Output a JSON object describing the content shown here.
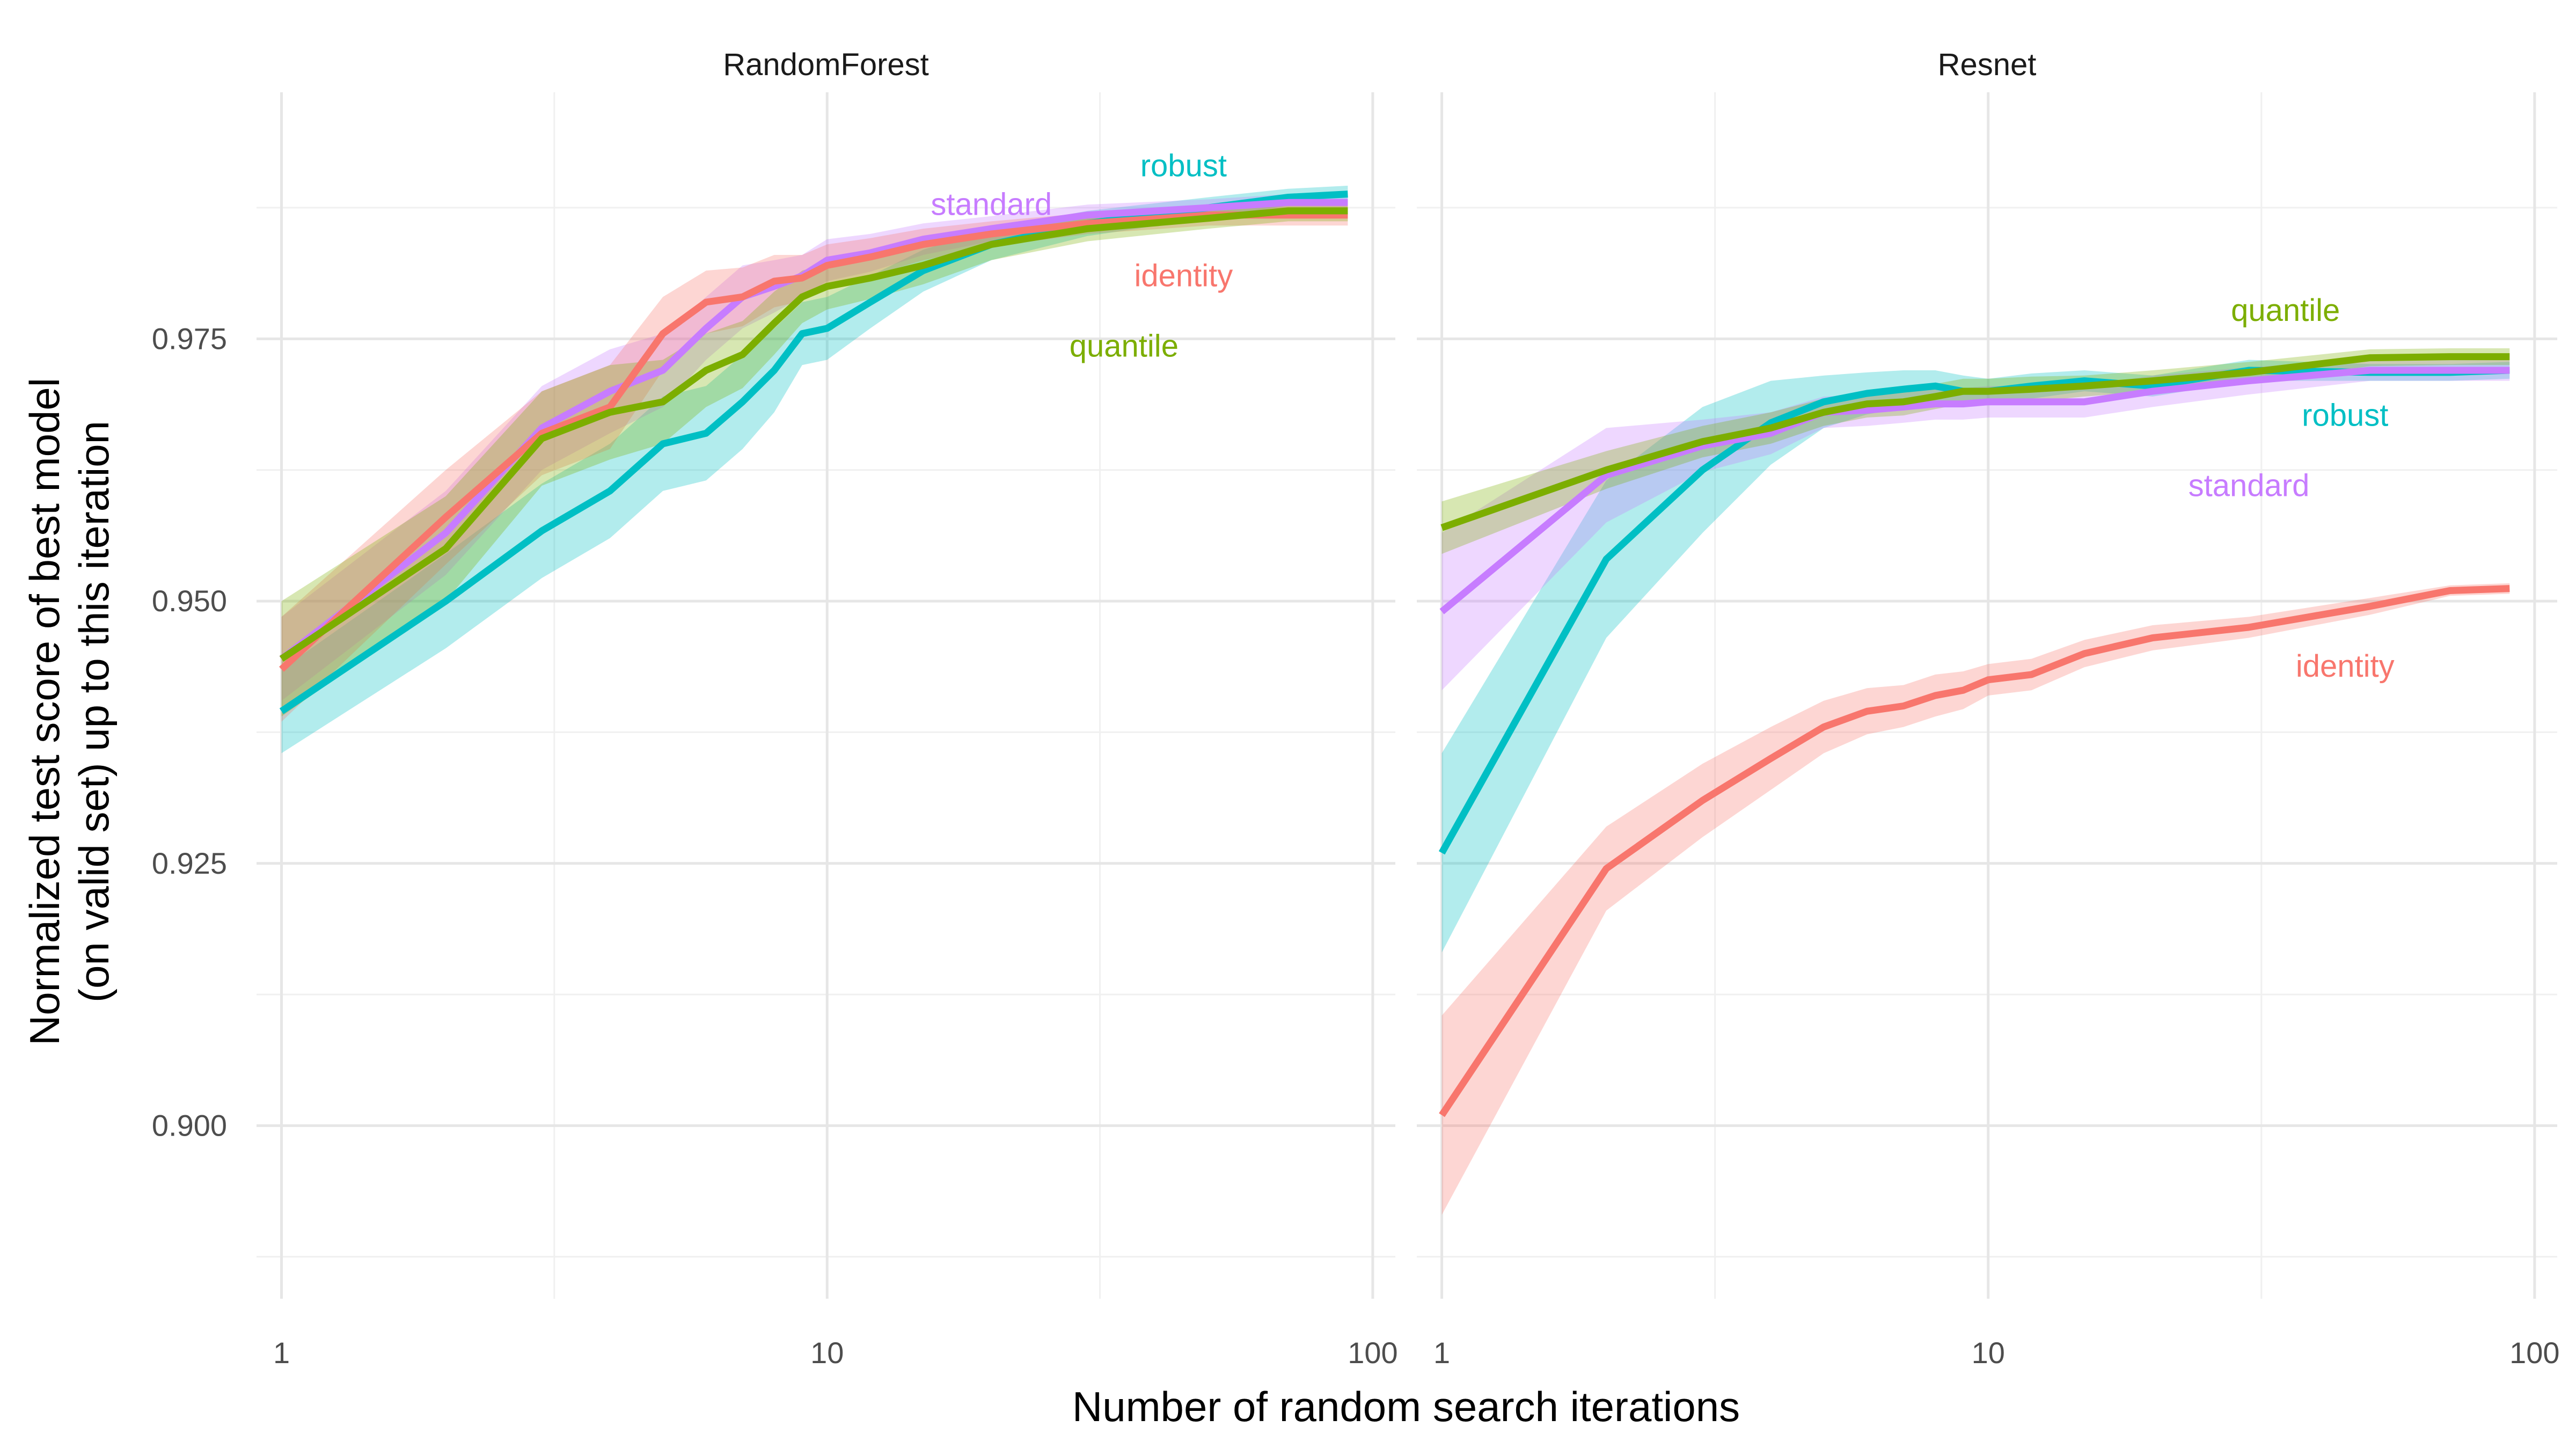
{
  "chart_data": {
    "type": "line",
    "xlabel": "Number of random search iterations",
    "ylabel_lines": [
      "Normalized test score of best model",
      "(on valid set) up to this iteration"
    ],
    "x_scale": "log10",
    "xlim": [
      0.9,
      110
    ],
    "ylim": [
      0.8835,
      0.9985
    ],
    "x_ticks": [
      1,
      10,
      100
    ],
    "x_tick_labels": [
      "1",
      "10",
      "100"
    ],
    "y_ticks": [
      0.9,
      0.925,
      0.95,
      0.975
    ],
    "y_tick_labels": [
      "0.900",
      "0.925",
      "0.950",
      "0.975"
    ],
    "grid": true,
    "legend": "none (direct labels)",
    "colors": {
      "identity": "#F8766D",
      "quantile": "#7CAE00",
      "robust": "#00BFC4",
      "standard": "#C77CFF"
    },
    "panels": [
      {
        "title": "RandomForest",
        "series": [
          {
            "name": "robust",
            "x": [
              1,
              2,
              3,
              4,
              5,
              6,
              7,
              8,
              9,
              10,
              12,
              15,
              20,
              30,
              50,
              70,
              90
            ],
            "y": [
              0.9395,
              0.95,
              0.9567,
              0.9605,
              0.965,
              0.966,
              0.969,
              0.972,
              0.9755,
              0.976,
              0.9785,
              0.9815,
              0.984,
              0.986,
              0.9875,
              0.9885,
              0.9888
            ],
            "ci": [
              0.004,
              0.0045,
              0.0045,
              0.0045,
              0.0045,
              0.0045,
              0.0045,
              0.004,
              0.003,
              0.003,
              0.0025,
              0.002,
              0.0015,
              0.0012,
              0.001,
              0.0008,
              0.0008
            ]
          },
          {
            "name": "standard",
            "x": [
              1,
              2,
              3,
              4,
              5,
              6,
              7,
              8,
              9,
              10,
              12,
              15,
              20,
              30,
              50,
              70,
              90
            ],
            "y": [
              0.9445,
              0.9565,
              0.9665,
              0.97,
              0.972,
              0.976,
              0.979,
              0.98,
              0.981,
              0.9825,
              0.9832,
              0.9845,
              0.9855,
              0.9868,
              0.9875,
              0.988,
              0.988
            ],
            "ci": [
              0.004,
              0.004,
              0.004,
              0.004,
              0.0035,
              0.003,
              0.003,
              0.0025,
              0.002,
              0.002,
              0.0018,
              0.0015,
              0.0012,
              0.001,
              0.0008,
              0.0008,
              0.0008
            ]
          },
          {
            "name": "identity",
            "x": [
              1,
              2,
              3,
              4,
              5,
              6,
              7,
              8,
              9,
              10,
              12,
              15,
              20,
              30,
              50,
              70,
              90
            ],
            "y": [
              0.9435,
              0.958,
              0.966,
              0.9685,
              0.9755,
              0.9785,
              0.979,
              0.9805,
              0.9808,
              0.982,
              0.9828,
              0.984,
              0.985,
              0.986,
              0.9868,
              0.9868,
              0.9868
            ],
            "ci": [
              0.005,
              0.0045,
              0.004,
              0.004,
              0.0035,
              0.003,
              0.0028,
              0.0025,
              0.0022,
              0.002,
              0.0018,
              0.0015,
              0.0012,
              0.001,
              0.001,
              0.001,
              0.001
            ]
          },
          {
            "name": "quantile",
            "x": [
              1,
              2,
              3,
              4,
              5,
              6,
              7,
              8,
              9,
              10,
              12,
              15,
              20,
              30,
              50,
              70,
              90
            ],
            "y": [
              0.9445,
              0.955,
              0.9655,
              0.968,
              0.969,
              0.972,
              0.9735,
              0.9765,
              0.979,
              0.98,
              0.9808,
              0.982,
              0.984,
              0.9855,
              0.9865,
              0.9872,
              0.9872
            ],
            "ci": [
              0.0055,
              0.005,
              0.0045,
              0.0045,
              0.004,
              0.0035,
              0.0032,
              0.003,
              0.0025,
              0.0022,
              0.002,
              0.0018,
              0.0015,
              0.0012,
              0.001,
              0.001,
              0.001
            ]
          }
        ],
        "labels": [
          {
            "series": "robust",
            "text": "robust",
            "x": 45,
            "y": 0.9905
          },
          {
            "series": "standard",
            "text": "standard",
            "x": 20,
            "y": 0.9868
          },
          {
            "series": "identity",
            "text": "identity",
            "x": 45,
            "y": 0.98
          },
          {
            "series": "quantile",
            "text": "quantile",
            "x": 35,
            "y": 0.9733
          }
        ]
      },
      {
        "title": "Resnet",
        "series": [
          {
            "name": "identity",
            "x": [
              1,
              2,
              3,
              4,
              5,
              6,
              7,
              8,
              9,
              10,
              12,
              15,
              20,
              30,
              50,
              70,
              90
            ],
            "y": [
              0.901,
              0.9245,
              0.931,
              0.935,
              0.938,
              0.9395,
              0.94,
              0.941,
              0.9415,
              0.9425,
              0.943,
              0.945,
              0.9465,
              0.9475,
              0.9495,
              0.951,
              0.9512
            ],
            "ci": [
              0.0095,
              0.004,
              0.0035,
              0.003,
              0.0025,
              0.0022,
              0.002,
              0.002,
              0.0018,
              0.0015,
              0.0015,
              0.0013,
              0.0012,
              0.001,
              0.0008,
              0.0005,
              0.0005
            ]
          },
          {
            "name": "robust",
            "x": [
              1,
              2,
              3,
              4,
              5,
              6,
              7,
              8,
              9,
              10,
              12,
              15,
              20,
              30,
              50,
              70,
              90
            ],
            "y": [
              0.926,
              0.954,
              0.9625,
              0.967,
              0.969,
              0.9698,
              0.9702,
              0.9705,
              0.97,
              0.97,
              0.9705,
              0.971,
              0.9705,
              0.972,
              0.9718,
              0.9718,
              0.972
            ],
            "ci": [
              0.0095,
              0.0075,
              0.006,
              0.004,
              0.0025,
              0.002,
              0.0018,
              0.0015,
              0.0015,
              0.0012,
              0.0012,
              0.001,
              0.001,
              0.001,
              0.0008,
              0.0008,
              0.0008
            ]
          },
          {
            "name": "standard",
            "x": [
              1,
              2,
              3,
              4,
              5,
              6,
              7,
              8,
              9,
              10,
              12,
              15,
              20,
              30,
              50,
              70,
              90
            ],
            "y": [
              0.949,
              0.962,
              0.9648,
              0.966,
              0.968,
              0.9682,
              0.9685,
              0.9688,
              0.9688,
              0.969,
              0.969,
              0.969,
              0.97,
              0.971,
              0.972,
              0.972,
              0.972
            ],
            "ci": [
              0.0075,
              0.0045,
              0.0025,
              0.002,
              0.0015,
              0.0015,
              0.0015,
              0.0015,
              0.0015,
              0.0015,
              0.0015,
              0.0015,
              0.0015,
              0.0013,
              0.001,
              0.001,
              0.001
            ]
          },
          {
            "name": "quantile",
            "x": [
              1,
              2,
              3,
              4,
              5,
              6,
              7,
              8,
              9,
              10,
              12,
              15,
              20,
              30,
              50,
              70,
              90
            ],
            "y": [
              0.957,
              0.9625,
              0.9652,
              0.9665,
              0.968,
              0.9688,
              0.969,
              0.9695,
              0.97,
              0.97,
              0.9702,
              0.9705,
              0.971,
              0.9718,
              0.9732,
              0.9733,
              0.9733
            ],
            "ci": [
              0.0025,
              0.0018,
              0.0015,
              0.0015,
              0.0013,
              0.0013,
              0.0013,
              0.0012,
              0.0012,
              0.0012,
              0.0012,
              0.001,
              0.001,
              0.001,
              0.0008,
              0.0008,
              0.0008
            ]
          }
        ],
        "labels": [
          {
            "series": "quantile",
            "text": "quantile",
            "x": 35,
            "y": 0.9767
          },
          {
            "series": "robust",
            "text": "robust",
            "x": 45,
            "y": 0.9667
          },
          {
            "series": "standard",
            "text": "standard",
            "x": 30,
            "y": 0.96
          },
          {
            "series": "identity",
            "text": "identity",
            "x": 45,
            "y": 0.9428
          }
        ]
      }
    ]
  }
}
